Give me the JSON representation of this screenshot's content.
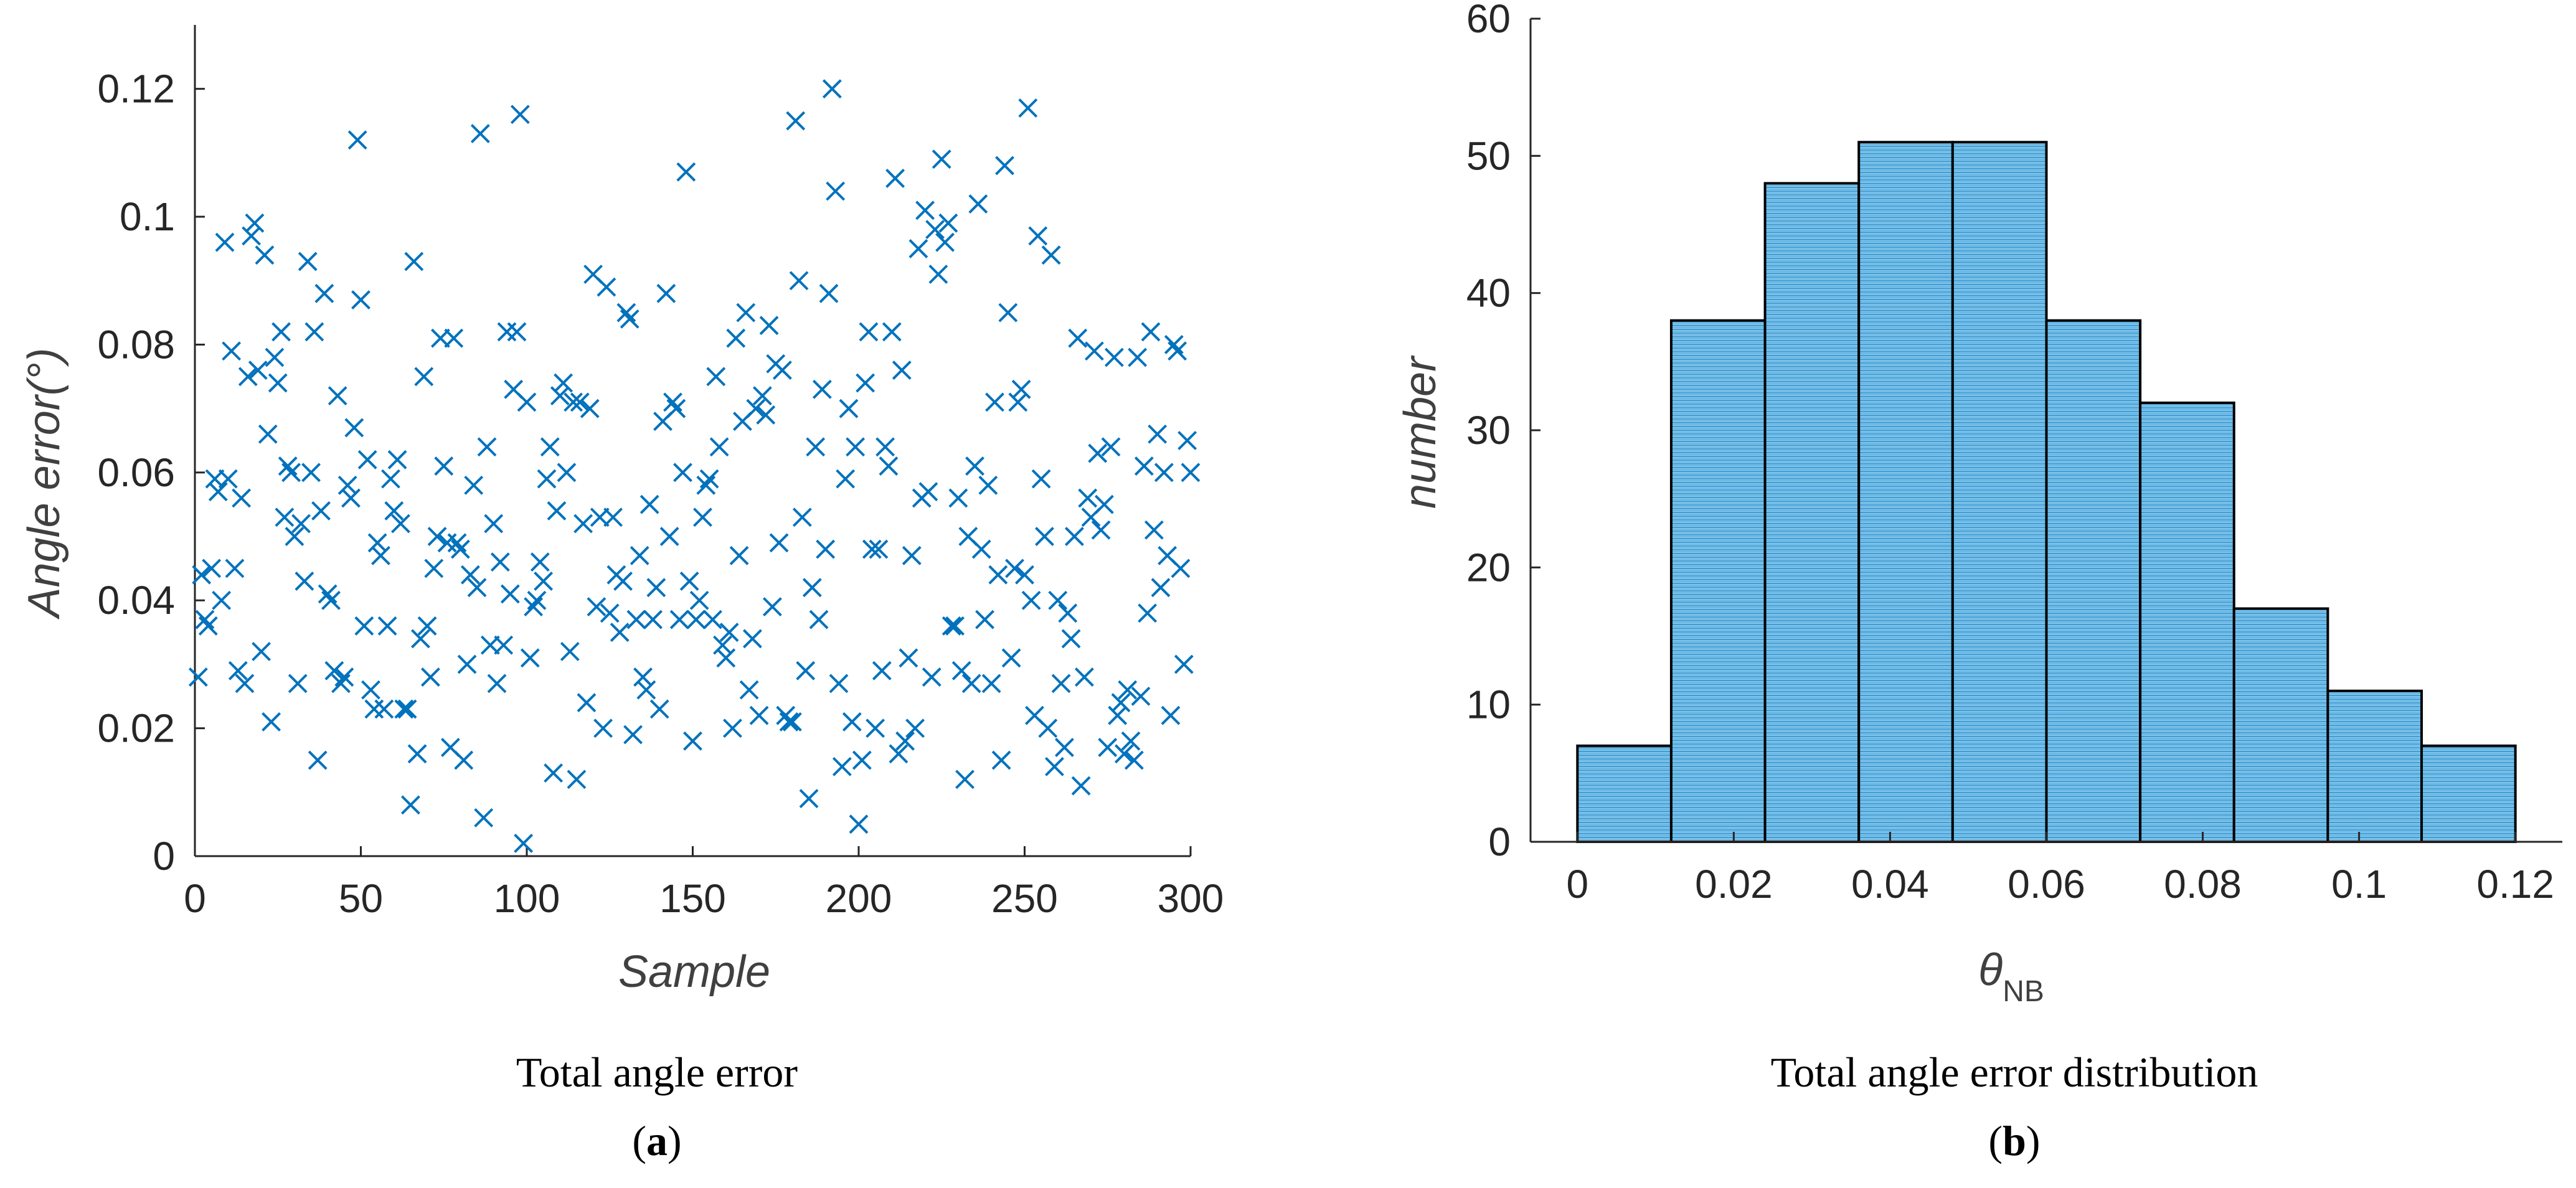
{
  "colors": {
    "marker": "#0072BD",
    "bar_fill": "#7CC3EA",
    "bar_edge": "#000000",
    "axis": "#262626"
  },
  "chart_data": [
    {
      "type": "scatter",
      "marker": "x",
      "xlabel": "Sample",
      "ylabel": "Angle error(°)",
      "xlim": [
        0,
        300
      ],
      "ylim": [
        0,
        0.13
      ],
      "xticks": [
        "0",
        "50",
        "100",
        "150",
        "200",
        "250",
        "300"
      ],
      "yticks": [
        "0",
        "0.02",
        "0.04",
        "0.06",
        "0.08",
        "0.1",
        "0.12"
      ],
      "caption": "Total angle error",
      "panel_label": "a",
      "points": [
        [
          1,
          0.028
        ],
        [
          2,
          0.044
        ],
        [
          3,
          0.037
        ],
        [
          4,
          0.036
        ],
        [
          5,
          0.045
        ],
        [
          6,
          0.059
        ],
        [
          7,
          0.057
        ],
        [
          8,
          0.04
        ],
        [
          9,
          0.096
        ],
        [
          10,
          0.059
        ],
        [
          11,
          0.079
        ],
        [
          12,
          0.045
        ],
        [
          13,
          0.029
        ],
        [
          14,
          0.056
        ],
        [
          15,
          0.027
        ],
        [
          16,
          0.075
        ],
        [
          17,
          0.097
        ],
        [
          18,
          0.099
        ],
        [
          19,
          0.076
        ],
        [
          20,
          0.032
        ],
        [
          21,
          0.094
        ],
        [
          22,
          0.066
        ],
        [
          23,
          0.021
        ],
        [
          24,
          0.078
        ],
        [
          25,
          0.074
        ],
        [
          26,
          0.082
        ],
        [
          27,
          0.053
        ],
        [
          28,
          0.061
        ],
        [
          29,
          0.06
        ],
        [
          30,
          0.05
        ],
        [
          31,
          0.027
        ],
        [
          32,
          0.052
        ],
        [
          33,
          0.043
        ],
        [
          34,
          0.093
        ],
        [
          35,
          0.06
        ],
        [
          36,
          0.082
        ],
        [
          37,
          0.015
        ],
        [
          38,
          0.054
        ],
        [
          39,
          0.088
        ],
        [
          40,
          0.041
        ],
        [
          41,
          0.04
        ],
        [
          42,
          0.029
        ],
        [
          43,
          0.072
        ],
        [
          44,
          0.027
        ],
        [
          45,
          0.028
        ],
        [
          46,
          0.058
        ],
        [
          47,
          0.056
        ],
        [
          48,
          0.067
        ],
        [
          49,
          0.112
        ],
        [
          50,
          0.087
        ],
        [
          51,
          0.036
        ],
        [
          52,
          0.062
        ],
        [
          53,
          0.026
        ],
        [
          54,
          0.023
        ],
        [
          55,
          0.049
        ],
        [
          56,
          0.047
        ],
        [
          57,
          0.023
        ],
        [
          58,
          0.036
        ],
        [
          59,
          0.059
        ],
        [
          60,
          0.054
        ],
        [
          61,
          0.062
        ],
        [
          62,
          0.052
        ],
        [
          63,
          0.023
        ],
        [
          64,
          0.023
        ],
        [
          65,
          0.008
        ],
        [
          66,
          0.093
        ],
        [
          67,
          0.016
        ],
        [
          68,
          0.034
        ],
        [
          69,
          0.075
        ],
        [
          70,
          0.036
        ],
        [
          71,
          0.028
        ],
        [
          72,
          0.045
        ],
        [
          73,
          0.05
        ],
        [
          74,
          0.081
        ],
        [
          75,
          0.061
        ],
        [
          76,
          0.049
        ],
        [
          77,
          0.017
        ],
        [
          78,
          0.081
        ],
        [
          79,
          0.049
        ],
        [
          80,
          0.048
        ],
        [
          81,
          0.015
        ],
        [
          82,
          0.03
        ],
        [
          83,
          0.044
        ],
        [
          84,
          0.058
        ],
        [
          85,
          0.042
        ],
        [
          86,
          0.113
        ],
        [
          87,
          0.006
        ],
        [
          88,
          0.064
        ],
        [
          89,
          0.033
        ],
        [
          90,
          0.052
        ],
        [
          91,
          0.027
        ],
        [
          92,
          0.046
        ],
        [
          93,
          0.033
        ],
        [
          94,
          0.082
        ],
        [
          95,
          0.041
        ],
        [
          96,
          0.073
        ],
        [
          97,
          0.082
        ],
        [
          98,
          0.116
        ],
        [
          99,
          0.002
        ],
        [
          100,
          0.071
        ],
        [
          101,
          0.031
        ],
        [
          102,
          0.039
        ],
        [
          103,
          0.04
        ],
        [
          104,
          0.046
        ],
        [
          105,
          0.043
        ],
        [
          106,
          0.059
        ],
        [
          107,
          0.064
        ],
        [
          108,
          0.013
        ],
        [
          109,
          0.054
        ],
        [
          110,
          0.072
        ],
        [
          111,
          0.074
        ],
        [
          112,
          0.06
        ],
        [
          113,
          0.032
        ],
        [
          114,
          0.071
        ],
        [
          115,
          0.012
        ],
        [
          116,
          0.071
        ],
        [
          117,
          0.052
        ],
        [
          118,
          0.024
        ],
        [
          119,
          0.07
        ],
        [
          120,
          0.091
        ],
        [
          121,
          0.039
        ],
        [
          122,
          0.053
        ],
        [
          123,
          0.02
        ],
        [
          124,
          0.089
        ],
        [
          125,
          0.038
        ],
        [
          126,
          0.053
        ],
        [
          127,
          0.044
        ],
        [
          128,
          0.035
        ],
        [
          129,
          0.043
        ],
        [
          130,
          0.085
        ],
        [
          131,
          0.084
        ],
        [
          132,
          0.019
        ],
        [
          133,
          0.037
        ],
        [
          134,
          0.047
        ],
        [
          135,
          0.028
        ],
        [
          136,
          0.026
        ],
        [
          137,
          0.055
        ],
        [
          138,
          0.037
        ],
        [
          139,
          0.042
        ],
        [
          140,
          0.023
        ],
        [
          141,
          0.068
        ],
        [
          142,
          0.088
        ],
        [
          143,
          0.05
        ],
        [
          144,
          0.071
        ],
        [
          145,
          0.07
        ],
        [
          146,
          0.037
        ],
        [
          147,
          0.06
        ],
        [
          148,
          0.107
        ],
        [
          149,
          0.043
        ],
        [
          150,
          0.018
        ],
        [
          151,
          0.037
        ],
        [
          152,
          0.04
        ],
        [
          153,
          0.053
        ],
        [
          154,
          0.058
        ],
        [
          155,
          0.059
        ],
        [
          156,
          0.037
        ],
        [
          157,
          0.075
        ],
        [
          158,
          0.064
        ],
        [
          159,
          0.033
        ],
        [
          160,
          0.031
        ],
        [
          161,
          0.035
        ],
        [
          162,
          0.02
        ],
        [
          163,
          0.081
        ],
        [
          164,
          0.047
        ],
        [
          165,
          0.068
        ],
        [
          166,
          0.085
        ],
        [
          167,
          0.026
        ],
        [
          168,
          0.034
        ],
        [
          169,
          0.07
        ],
        [
          170,
          0.022
        ],
        [
          171,
          0.072
        ],
        [
          172,
          0.069
        ],
        [
          173,
          0.083
        ],
        [
          174,
          0.039
        ],
        [
          175,
          0.077
        ],
        [
          176,
          0.049
        ],
        [
          177,
          0.076
        ],
        [
          178,
          0.022
        ],
        [
          179,
          0.021
        ],
        [
          180,
          0.021
        ],
        [
          181,
          0.115
        ],
        [
          182,
          0.09
        ],
        [
          183,
          0.053
        ],
        [
          184,
          0.029
        ],
        [
          185,
          0.009
        ],
        [
          186,
          0.042
        ],
        [
          187,
          0.064
        ],
        [
          188,
          0.037
        ],
        [
          189,
          0.073
        ],
        [
          190,
          0.048
        ],
        [
          191,
          0.088
        ],
        [
          192,
          0.12
        ],
        [
          193,
          0.104
        ],
        [
          194,
          0.027
        ],
        [
          195,
          0.014
        ],
        [
          196,
          0.059
        ],
        [
          197,
          0.07
        ],
        [
          198,
          0.021
        ],
        [
          199,
          0.064
        ],
        [
          200,
          0.005
        ],
        [
          201,
          0.015
        ],
        [
          202,
          0.074
        ],
        [
          203,
          0.082
        ],
        [
          204,
          0.048
        ],
        [
          205,
          0.02
        ],
        [
          206,
          0.048
        ],
        [
          207,
          0.029
        ],
        [
          208,
          0.064
        ],
        [
          209,
          0.061
        ],
        [
          210,
          0.082
        ],
        [
          211,
          0.106
        ],
        [
          212,
          0.016
        ],
        [
          213,
          0.076
        ],
        [
          214,
          0.018
        ],
        [
          215,
          0.031
        ],
        [
          216,
          0.047
        ],
        [
          217,
          0.02
        ],
        [
          218,
          0.095
        ],
        [
          219,
          0.056
        ],
        [
          220,
          0.101
        ],
        [
          221,
          0.057
        ],
        [
          222,
          0.028
        ],
        [
          223,
          0.098
        ],
        [
          224,
          0.091
        ],
        [
          225,
          0.109
        ],
        [
          226,
          0.096
        ],
        [
          227,
          0.099
        ],
        [
          228,
          0.036
        ],
        [
          229,
          0.036
        ],
        [
          230,
          0.056
        ],
        [
          231,
          0.029
        ],
        [
          232,
          0.012
        ],
        [
          233,
          0.05
        ],
        [
          234,
          0.027
        ],
        [
          235,
          0.061
        ],
        [
          236,
          0.102
        ],
        [
          237,
          0.048
        ],
        [
          238,
          0.037
        ],
        [
          239,
          0.058
        ],
        [
          240,
          0.027
        ],
        [
          241,
          0.071
        ],
        [
          242,
          0.044
        ],
        [
          243,
          0.015
        ],
        [
          244,
          0.108
        ],
        [
          245,
          0.085
        ],
        [
          246,
          0.031
        ],
        [
          247,
          0.045
        ],
        [
          248,
          0.071
        ],
        [
          249,
          0.073
        ],
        [
          250,
          0.044
        ],
        [
          251,
          0.117
        ],
        [
          252,
          0.04
        ],
        [
          253,
          0.022
        ],
        [
          254,
          0.097
        ],
        [
          255,
          0.059
        ],
        [
          256,
          0.05
        ],
        [
          257,
          0.02
        ],
        [
          258,
          0.094
        ],
        [
          259,
          0.014
        ],
        [
          260,
          0.04
        ],
        [
          261,
          0.027
        ],
        [
          262,
          0.017
        ],
        [
          263,
          0.038
        ],
        [
          264,
          0.034
        ],
        [
          265,
          0.05
        ],
        [
          266,
          0.081
        ],
        [
          267,
          0.011
        ],
        [
          268,
          0.028
        ],
        [
          269,
          0.056
        ],
        [
          270,
          0.053
        ],
        [
          271,
          0.079
        ],
        [
          272,
          0.063
        ],
        [
          273,
          0.051
        ],
        [
          274,
          0.055
        ],
        [
          275,
          0.017
        ],
        [
          276,
          0.064
        ],
        [
          277,
          0.078
        ],
        [
          278,
          0.022
        ],
        [
          279,
          0.024
        ],
        [
          280,
          0.016
        ],
        [
          281,
          0.026
        ],
        [
          282,
          0.018
        ],
        [
          283,
          0.015
        ],
        [
          284,
          0.078
        ],
        [
          285,
          0.025
        ],
        [
          286,
          0.061
        ],
        [
          287,
          0.038
        ],
        [
          288,
          0.082
        ],
        [
          289,
          0.051
        ],
        [
          290,
          0.066
        ],
        [
          291,
          0.042
        ],
        [
          292,
          0.06
        ],
        [
          293,
          0.047
        ],
        [
          294,
          0.022
        ],
        [
          295,
          0.08
        ],
        [
          296,
          0.079
        ],
        [
          297,
          0.045
        ],
        [
          298,
          0.03
        ],
        [
          299,
          0.065
        ],
        [
          300,
          0.06
        ]
      ]
    },
    {
      "type": "bar",
      "subtype": "histogram",
      "xlabel": "θ",
      "xlabel_subscript": "NB",
      "ylabel": "number",
      "xlim": [
        -0.006,
        0.126
      ],
      "ylim": [
        0,
        60
      ],
      "xticks": [
        "0",
        "0.02",
        "0.04",
        "0.06",
        "0.08",
        "0.1",
        "0.12"
      ],
      "yticks": [
        "0",
        "10",
        "20",
        "30",
        "40",
        "50",
        "60"
      ],
      "caption": "Total angle error distribution",
      "panel_label": "b",
      "bin_edges": [
        0,
        0.012,
        0.024,
        0.036,
        0.048,
        0.06,
        0.072,
        0.084,
        0.096,
        0.108,
        0.12
      ],
      "values": [
        7,
        38,
        48,
        51,
        51,
        38,
        32,
        17,
        11,
        7
      ]
    }
  ]
}
